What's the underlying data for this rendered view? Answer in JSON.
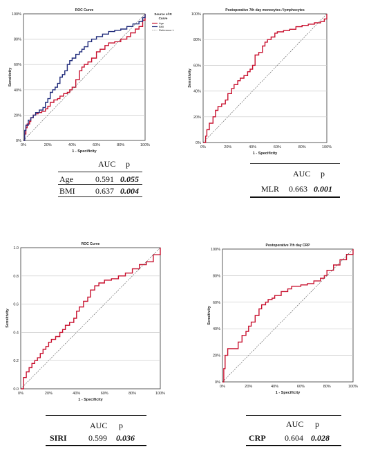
{
  "chart_data": [
    {
      "type": "line",
      "title": "ROC Curve",
      "xlabel": "1 - Specificity",
      "ylabel": "Sensitivity",
      "xticks": [
        "0%",
        "20%",
        "40%",
        "60%",
        "80%",
        "100%"
      ],
      "yticks": [
        "0%",
        "20%",
        "40%",
        "60%",
        "80%",
        "100%"
      ],
      "xlim": [
        0,
        1
      ],
      "ylim": [
        0,
        1
      ],
      "grid": true,
      "legend": {
        "placement": "top-right-outside",
        "title_lines": [
          "Source of R",
          "Curve"
        ],
        "entries": [
          "Age",
          "BMI",
          "Reference L"
        ]
      },
      "series": [
        {
          "name": "Age",
          "color": "#c8102e",
          "x": [
            0,
            0.01,
            0.02,
            0.03,
            0.05,
            0.06,
            0.08,
            0.1,
            0.12,
            0.15,
            0.18,
            0.2,
            0.22,
            0.25,
            0.28,
            0.3,
            0.33,
            0.36,
            0.38,
            0.4,
            0.43,
            0.46,
            0.48,
            0.5,
            0.53,
            0.56,
            0.6,
            0.63,
            0.67,
            0.7,
            0.75,
            0.8,
            0.85,
            0.88,
            0.92,
            0.95,
            0.98,
            1.0
          ],
          "y": [
            0,
            0.05,
            0.1,
            0.13,
            0.15,
            0.18,
            0.2,
            0.21,
            0.22,
            0.23,
            0.25,
            0.27,
            0.3,
            0.32,
            0.33,
            0.35,
            0.37,
            0.38,
            0.4,
            0.42,
            0.48,
            0.55,
            0.58,
            0.6,
            0.62,
            0.65,
            0.7,
            0.72,
            0.75,
            0.77,
            0.78,
            0.8,
            0.82,
            0.85,
            0.88,
            0.9,
            0.95,
            1.0
          ]
        },
        {
          "name": "BMI",
          "color": "#1f2a7a",
          "x": [
            0,
            0.01,
            0.02,
            0.04,
            0.06,
            0.08,
            0.1,
            0.13,
            0.16,
            0.18,
            0.2,
            0.22,
            0.24,
            0.26,
            0.28,
            0.3,
            0.32,
            0.34,
            0.36,
            0.38,
            0.4,
            0.43,
            0.46,
            0.48,
            0.5,
            0.53,
            0.56,
            0.6,
            0.65,
            0.7,
            0.75,
            0.8,
            0.85,
            0.9,
            0.95,
            0.98,
            1.0
          ],
          "y": [
            0,
            0.08,
            0.12,
            0.16,
            0.18,
            0.2,
            0.22,
            0.24,
            0.26,
            0.3,
            0.33,
            0.38,
            0.4,
            0.42,
            0.45,
            0.5,
            0.52,
            0.55,
            0.6,
            0.63,
            0.65,
            0.68,
            0.7,
            0.72,
            0.74,
            0.78,
            0.8,
            0.82,
            0.84,
            0.86,
            0.87,
            0.88,
            0.9,
            0.92,
            0.94,
            0.97,
            1.0
          ]
        },
        {
          "name": "Reference L",
          "color": "#555555",
          "dashed": true,
          "x": [
            0,
            1
          ],
          "y": [
            0,
            1
          ]
        }
      ]
    },
    {
      "type": "line",
      "title": "Postoperative 7th day monocytes / lymphocytes",
      "xlabel": "1 - Specificity",
      "ylabel": "Sensitivity",
      "xticks": [
        "0%",
        "20%",
        "40%",
        "60%",
        "80%",
        "100%"
      ],
      "yticks": [
        "0%",
        "20%",
        "40%",
        "60%",
        "80%",
        "100%"
      ],
      "xlim": [
        0,
        1
      ],
      "ylim": [
        0,
        1
      ],
      "grid": true,
      "series": [
        {
          "name": "",
          "color": "#c8102e",
          "x": [
            0,
            0.02,
            0.03,
            0.05,
            0.08,
            0.1,
            0.12,
            0.15,
            0.18,
            0.2,
            0.23,
            0.25,
            0.28,
            0.3,
            0.33,
            0.36,
            0.38,
            0.4,
            0.42,
            0.45,
            0.48,
            0.5,
            0.52,
            0.55,
            0.58,
            0.6,
            0.65,
            0.7,
            0.75,
            0.8,
            0.85,
            0.9,
            0.95,
            0.98,
            1.0
          ],
          "y": [
            0,
            0.05,
            0.1,
            0.15,
            0.2,
            0.25,
            0.28,
            0.3,
            0.33,
            0.38,
            0.42,
            0.45,
            0.48,
            0.5,
            0.52,
            0.55,
            0.57,
            0.6,
            0.68,
            0.7,
            0.75,
            0.78,
            0.8,
            0.82,
            0.85,
            0.86,
            0.87,
            0.88,
            0.9,
            0.91,
            0.92,
            0.93,
            0.94,
            0.96,
            1.0
          ]
        },
        {
          "name": "",
          "color": "#555555",
          "dashed": true,
          "x": [
            0,
            1
          ],
          "y": [
            0,
            1
          ]
        }
      ]
    },
    {
      "type": "line",
      "title": "ROC Curve",
      "xlabel": "1 - Specificity",
      "ylabel": "Sensitivity",
      "xticks": [
        "0%",
        "20%",
        "40%",
        "60%",
        "80%",
        "100%"
      ],
      "yticks": [
        "0.0",
        "0.2",
        "0.4",
        "0.6",
        "0.8",
        "1.0"
      ],
      "xlim": [
        0,
        1
      ],
      "ylim": [
        0,
        1
      ],
      "grid": true,
      "series": [
        {
          "name": "",
          "color": "#c8102e",
          "x": [
            0,
            0.02,
            0.04,
            0.06,
            0.08,
            0.1,
            0.12,
            0.14,
            0.16,
            0.18,
            0.2,
            0.22,
            0.25,
            0.28,
            0.3,
            0.32,
            0.35,
            0.38,
            0.4,
            0.42,
            0.45,
            0.48,
            0.5,
            0.53,
            0.56,
            0.6,
            0.65,
            0.7,
            0.75,
            0.8,
            0.85,
            0.9,
            0.95,
            1.0
          ],
          "y": [
            0,
            0.08,
            0.12,
            0.15,
            0.18,
            0.2,
            0.22,
            0.25,
            0.28,
            0.3,
            0.33,
            0.35,
            0.37,
            0.4,
            0.42,
            0.45,
            0.47,
            0.5,
            0.55,
            0.58,
            0.62,
            0.65,
            0.7,
            0.73,
            0.75,
            0.77,
            0.78,
            0.8,
            0.82,
            0.85,
            0.88,
            0.9,
            0.95,
            1.0
          ]
        },
        {
          "name": "",
          "color": "#555555",
          "dashed": true,
          "x": [
            0,
            1
          ],
          "y": [
            0,
            1
          ]
        }
      ]
    },
    {
      "type": "line",
      "title": "Postoperative 7th day CRP",
      "xlabel": "1 - Specificity",
      "ylabel": "Sensitivity",
      "xticks": [
        "0%",
        "20%",
        "40%",
        "60%",
        "80%",
        "100%"
      ],
      "yticks": [
        "0%",
        "20%",
        "40%",
        "60%",
        "80%",
        "100%"
      ],
      "xlim": [
        0,
        1
      ],
      "ylim": [
        0,
        1
      ],
      "grid": true,
      "series": [
        {
          "name": "",
          "color": "#c8102e",
          "x": [
            0,
            0.01,
            0.02,
            0.04,
            0.06,
            0.1,
            0.12,
            0.15,
            0.18,
            0.2,
            0.22,
            0.25,
            0.28,
            0.3,
            0.33,
            0.35,
            0.38,
            0.4,
            0.45,
            0.5,
            0.53,
            0.56,
            0.6,
            0.65,
            0.7,
            0.75,
            0.78,
            0.8,
            0.85,
            0.9,
            0.95,
            1.0
          ],
          "y": [
            0,
            0.1,
            0.2,
            0.25,
            0.25,
            0.25,
            0.3,
            0.35,
            0.38,
            0.42,
            0.45,
            0.5,
            0.55,
            0.58,
            0.6,
            0.62,
            0.63,
            0.65,
            0.68,
            0.7,
            0.72,
            0.72,
            0.73,
            0.74,
            0.76,
            0.78,
            0.8,
            0.84,
            0.88,
            0.92,
            0.96,
            1.0
          ]
        },
        {
          "name": "",
          "color": "#555555",
          "dashed": true,
          "x": [
            0,
            1
          ],
          "y": [
            0,
            1
          ]
        }
      ]
    }
  ],
  "tables": {
    "t1": {
      "header": {
        "auc": "AUC",
        "p": "p"
      },
      "rows": [
        {
          "label": "Age",
          "auc": "0.591",
          "p": "0.055"
        },
        {
          "label": "BMI",
          "auc": "0.637",
          "p": "0.004"
        }
      ]
    },
    "t2": {
      "header": {
        "auc": "AUC",
        "p": "p"
      },
      "rows": [
        {
          "label": "MLR",
          "auc": "0.663",
          "p": "0.001"
        }
      ]
    },
    "t3": {
      "header": {
        "auc": "AUC",
        "p": "p"
      },
      "rows": [
        {
          "label": "SIRI",
          "auc": "0.599",
          "p": "0.036"
        }
      ]
    },
    "t4": {
      "header": {
        "auc": "AUC",
        "p": "p"
      },
      "rows": [
        {
          "label": "CRP",
          "auc": "0.604",
          "p": "0.028"
        }
      ]
    }
  }
}
